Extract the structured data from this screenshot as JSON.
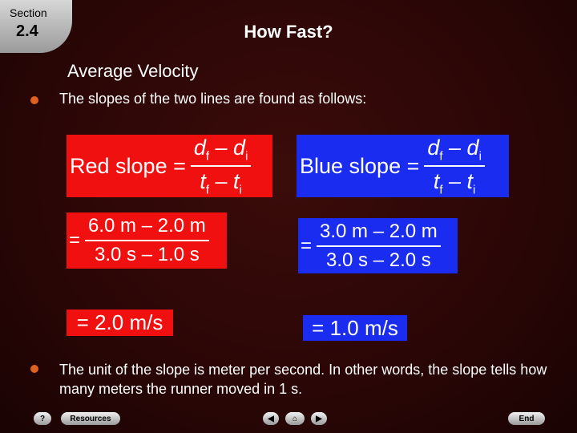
{
  "header": {
    "section_label": "Section",
    "section_number": "2.4",
    "title": "How Fast?"
  },
  "heading": "Average Velocity",
  "bullets": [
    "The slopes of the two lines are found as follows:",
    "The unit of the slope is meter per second. In other words, the slope tells how many meters the runner moved in 1 s."
  ],
  "formulas": [
    {
      "lhs": "Red slope =",
      "numerator": [
        {
          "t": "d",
          "s": "f"
        },
        {
          "t": " – d",
          "s": "i"
        }
      ],
      "denominator": [
        {
          "t": "t",
          "s": "f"
        },
        {
          "t": " – t",
          "s": "i"
        }
      ],
      "step": {
        "prefix": "=",
        "numerator": "6.0 m – 2.0 m",
        "denominator": "3.0 s – 1.0 s"
      },
      "result": "= 2.0 m/s"
    },
    {
      "lhs": "Blue slope =",
      "numerator": [
        {
          "t": "d",
          "s": "f"
        },
        {
          "t": " – d",
          "s": "i"
        }
      ],
      "denominator": [
        {
          "t": "t",
          "s": "f"
        },
        {
          "t": " – t",
          "s": "i"
        }
      ],
      "step": {
        "prefix": "=",
        "numerator": "3.0 m – 2.0 m",
        "denominator": "3.0 s – 2.0 s"
      },
      "result": "= 1.0 m/s"
    }
  ],
  "nav": {
    "help": "?",
    "resources": "Resources",
    "end": "End"
  }
}
